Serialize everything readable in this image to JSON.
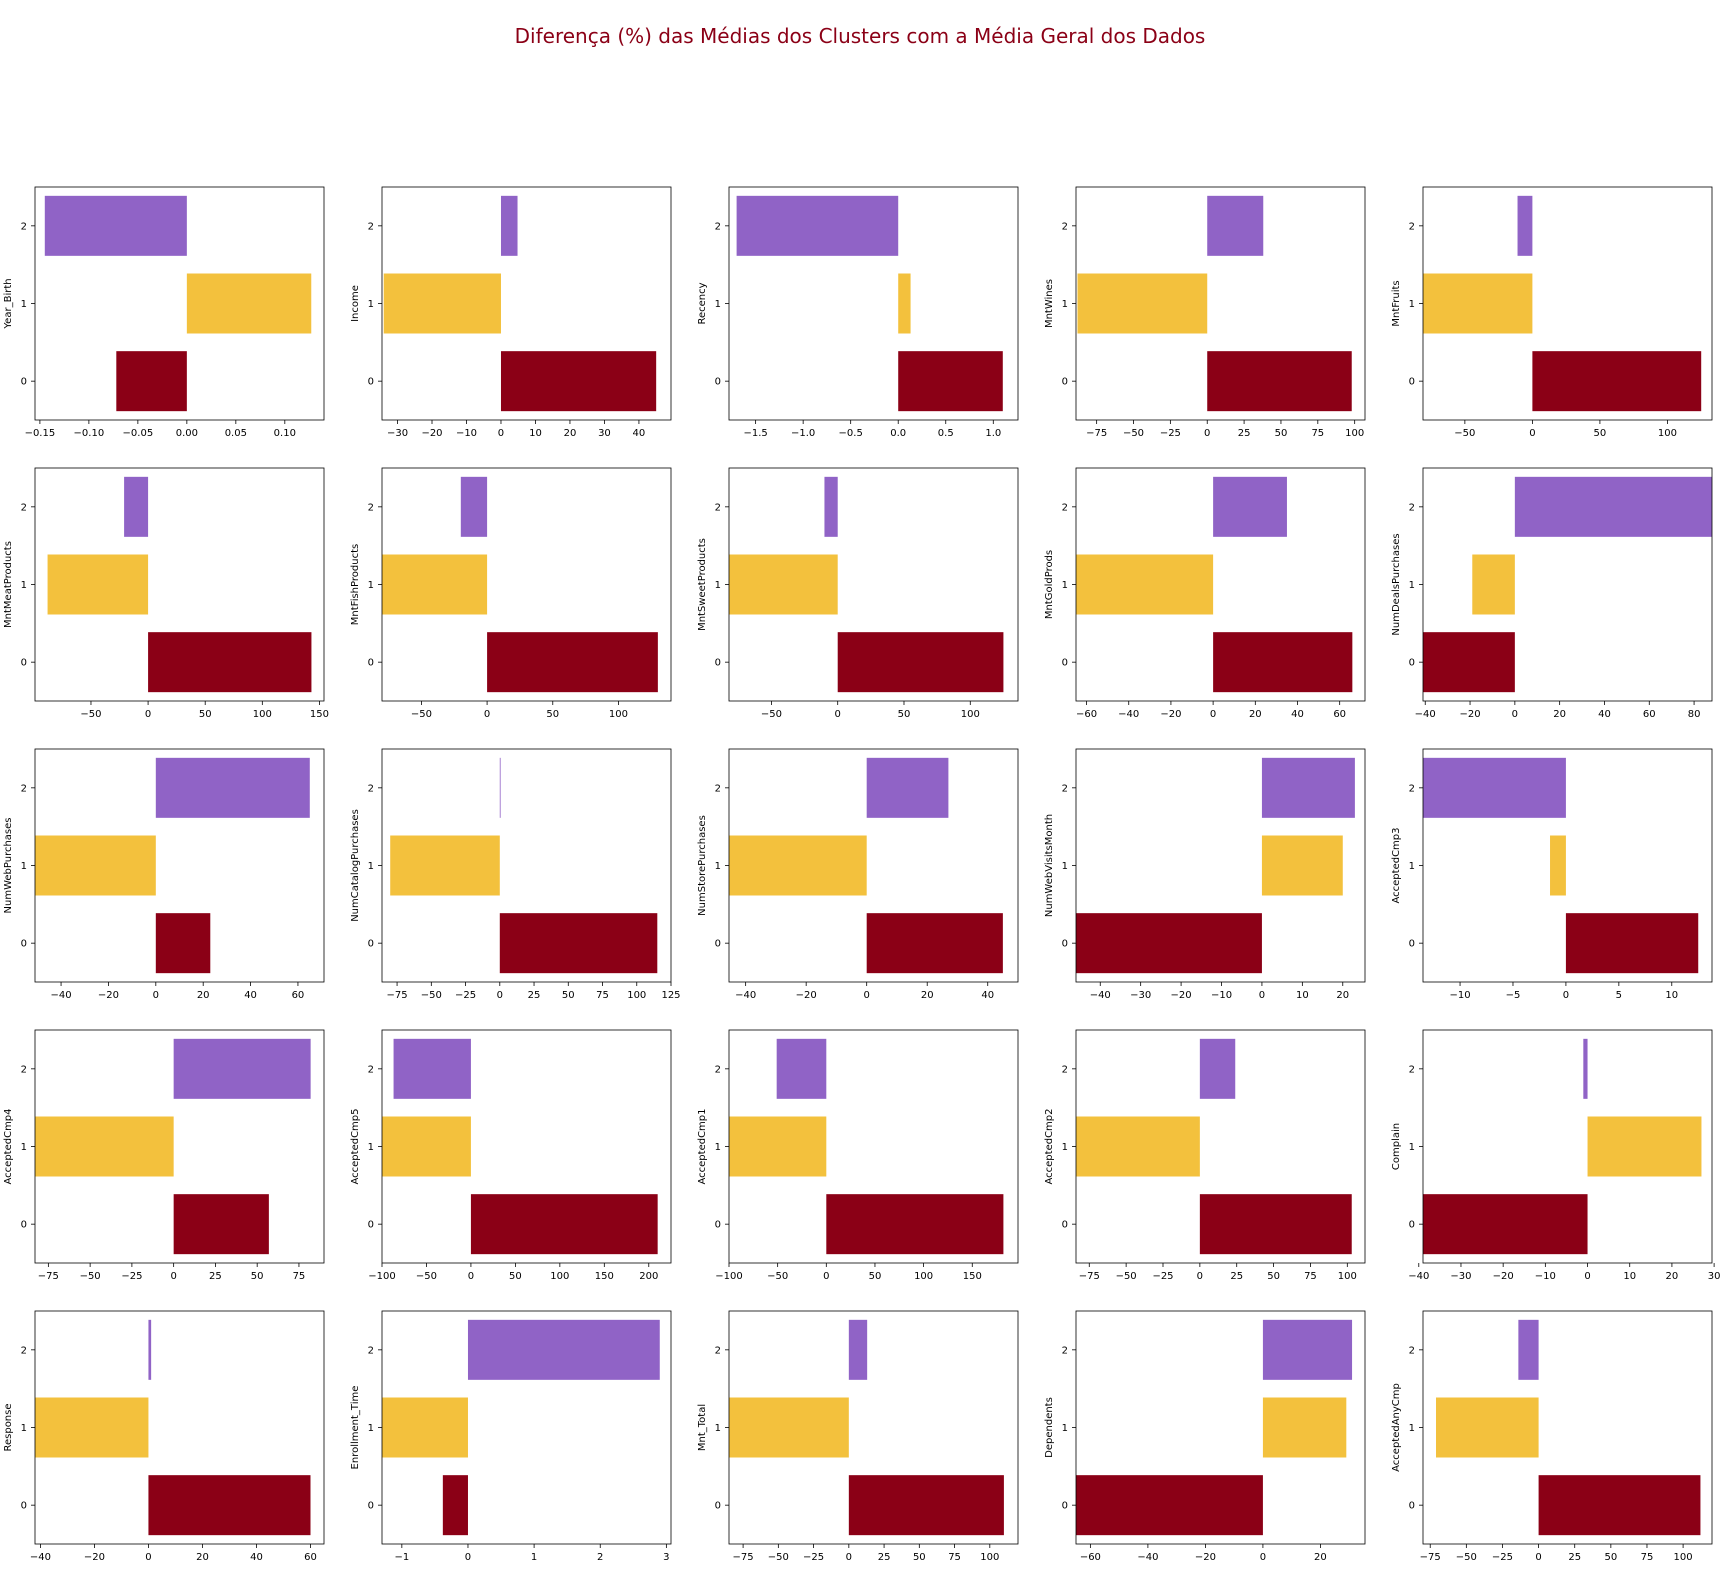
{
  "title": "Diferença (%) das Médias dos Clusters com a Média Geral dos Dados",
  "colors": {
    "cluster_0": "#8b0016",
    "cluster_1": "#f3c13d",
    "cluster_2": "#9063c6",
    "title": "#8b0016"
  },
  "chart_data": [
    {
      "type": "bar",
      "orientation": "horizontal",
      "ylabel": "Year_Birth",
      "categories": [
        "0",
        "1",
        "2"
      ],
      "values": [
        -0.072,
        0.127,
        -0.145
      ],
      "xlim": [
        -0.155,
        0.14
      ],
      "xticks": [
        -0.15,
        -0.1,
        -0.05,
        0.0,
        0.05,
        0.1
      ],
      "xtick_labels": [
        "−0.15",
        "−0.10",
        "−0.05",
        "0.00",
        "0.05",
        "0.10"
      ]
    },
    {
      "type": "bar",
      "orientation": "horizontal",
      "ylabel": "Income",
      "categories": [
        "0",
        "1",
        "2"
      ],
      "values": [
        45.0,
        -34.0,
        4.8
      ],
      "xlim": [
        -34.5,
        49.3
      ],
      "xticks": [
        -30,
        -20,
        -10,
        0,
        10,
        20,
        30,
        40
      ],
      "xtick_labels": [
        "−30",
        "−20",
        "−10",
        "0",
        "10",
        "20",
        "30",
        "40"
      ]
    },
    {
      "type": "bar",
      "orientation": "horizontal",
      "ylabel": "Recency",
      "categories": [
        "0",
        "1",
        "2"
      ],
      "values": [
        1.1,
        0.13,
        -1.7
      ],
      "xlim": [
        -1.78,
        1.26
      ],
      "xticks": [
        -1.5,
        -1.0,
        -0.5,
        0.0,
        0.5,
        1.0
      ],
      "xtick_labels": [
        "−1.5",
        "−1.0",
        "−0.5",
        "0.0",
        "0.5",
        "1.0"
      ]
    },
    {
      "type": "bar",
      "orientation": "horizontal",
      "ylabel": "MntWines",
      "categories": [
        "0",
        "1",
        "2"
      ],
      "values": [
        98,
        -88,
        38
      ],
      "xlim": [
        -89,
        107
      ],
      "xticks": [
        -75,
        -50,
        -25,
        0,
        25,
        50,
        75,
        100
      ],
      "xtick_labels": [
        "−75",
        "−50",
        "−25",
        "0",
        "25",
        "50",
        "75",
        "100"
      ]
    },
    {
      "type": "bar",
      "orientation": "horizontal",
      "ylabel": "MntFruits",
      "categories": [
        "0",
        "1",
        "2"
      ],
      "values": [
        125,
        -81,
        -11
      ],
      "xlim": [
        -81,
        133
      ],
      "xticks": [
        -50,
        0,
        50,
        100
      ],
      "xtick_labels": [
        "−50",
        "0",
        "50",
        "100"
      ]
    },
    {
      "type": "bar",
      "orientation": "horizontal",
      "ylabel": "MntMeatProducts",
      "categories": [
        "0",
        "1",
        "2"
      ],
      "values": [
        143,
        -88,
        -21
      ],
      "xlim": [
        -99,
        154
      ],
      "xticks": [
        -50,
        0,
        50,
        100,
        150
      ],
      "xtick_labels": [
        "−50",
        "0",
        "50",
        "100",
        "150"
      ]
    },
    {
      "type": "bar",
      "orientation": "horizontal",
      "ylabel": "MntFishProducts",
      "categories": [
        "0",
        "1",
        "2"
      ],
      "values": [
        130,
        -80,
        -20
      ],
      "xlim": [
        -80,
        140
      ],
      "xticks": [
        -50,
        0,
        50,
        100
      ],
      "xtick_labels": [
        "−50",
        "0",
        "50",
        "100"
      ]
    },
    {
      "type": "bar",
      "orientation": "horizontal",
      "ylabel": "MntSweetProducts",
      "categories": [
        "0",
        "1",
        "2"
      ],
      "values": [
        125,
        -82,
        -10
      ],
      "xlim": [
        -82,
        136
      ],
      "xticks": [
        -50,
        0,
        50,
        100
      ],
      "xtick_labels": [
        "−50",
        "0",
        "50",
        "100"
      ]
    },
    {
      "type": "bar",
      "orientation": "horizontal",
      "ylabel": "MntGoldProds",
      "categories": [
        "0",
        "1",
        "2"
      ],
      "values": [
        66,
        -65,
        35
      ],
      "xlim": [
        -65,
        72
      ],
      "xticks": [
        -60,
        -40,
        -20,
        0,
        20,
        40,
        60
      ],
      "xtick_labels": [
        "−60",
        "−40",
        "−20",
        "0",
        "20",
        "40",
        "60"
      ]
    },
    {
      "type": "bar",
      "orientation": "horizontal",
      "ylabel": "NumDealsPurchases",
      "categories": [
        "0",
        "1",
        "2"
      ],
      "values": [
        -41,
        -19,
        88
      ],
      "xlim": [
        -41,
        88
      ],
      "xticks": [
        -40,
        -20,
        0,
        20,
        40,
        60,
        80
      ],
      "xtick_labels": [
        "−40",
        "−20",
        "0",
        "20",
        "40",
        "60",
        "80"
      ]
    },
    {
      "type": "bar",
      "orientation": "horizontal",
      "ylabel": "NumWebPurchases",
      "categories": [
        "0",
        "1",
        "2"
      ],
      "values": [
        23,
        -51,
        65
      ],
      "xlim": [
        -51,
        71
      ],
      "xticks": [
        -40,
        -20,
        0,
        20,
        40,
        60
      ],
      "xtick_labels": [
        "−40",
        "−20",
        "0",
        "20",
        "40",
        "60"
      ]
    },
    {
      "type": "bar",
      "orientation": "horizontal",
      "ylabel": "NumCatalogPurchases",
      "categories": [
        "0",
        "1",
        "2"
      ],
      "values": [
        115,
        -80,
        0
      ],
      "xlim": [
        -86,
        125
      ],
      "xticks": [
        -75,
        -50,
        -25,
        0,
        25,
        50,
        75,
        100,
        125
      ],
      "xtick_labels": [
        "−75",
        "−50",
        "−25",
        "0",
        "25",
        "50",
        "75",
        "100",
        "125"
      ]
    },
    {
      "type": "bar",
      "orientation": "horizontal",
      "ylabel": "NumStorePurchases",
      "categories": [
        "0",
        "1",
        "2"
      ],
      "values": [
        45,
        -45.5,
        27
      ],
      "xlim": [
        -45.5,
        50
      ],
      "xticks": [
        -40,
        -20,
        0,
        20,
        40
      ],
      "xtick_labels": [
        "−40",
        "−20",
        "0",
        "20",
        "40"
      ]
    },
    {
      "type": "bar",
      "orientation": "horizontal",
      "ylabel": "NumWebVisitsMonth",
      "categories": [
        "0",
        "1",
        "2"
      ],
      "values": [
        -46,
        20,
        23
      ],
      "xlim": [
        -46,
        25.5
      ],
      "xticks": [
        -40,
        -30,
        -20,
        -10,
        0,
        10,
        20
      ],
      "xtick_labels": [
        "−40",
        "−30",
        "−20",
        "−10",
        "0",
        "10",
        "20"
      ]
    },
    {
      "type": "bar",
      "orientation": "horizontal",
      "ylabel": "AcceptedCmp3",
      "categories": [
        "0",
        "1",
        "2"
      ],
      "values": [
        12.5,
        -1.5,
        -13.5
      ],
      "xlim": [
        -13.5,
        13.8
      ],
      "xticks": [
        -10,
        -5,
        0,
        5,
        10
      ],
      "xtick_labels": [
        "−10",
        "−5",
        "0",
        "5",
        "10"
      ]
    },
    {
      "type": "bar",
      "orientation": "horizontal",
      "ylabel": "AcceptedCmp4",
      "categories": [
        "0",
        "1",
        "2"
      ],
      "values": [
        57,
        -83,
        82
      ],
      "xlim": [
        -83,
        90
      ],
      "xticks": [
        -75,
        -50,
        -25,
        0,
        25,
        50,
        75
      ],
      "xtick_labels": [
        "−75",
        "−50",
        "−25",
        "0",
        "25",
        "50",
        "75"
      ]
    },
    {
      "type": "bar",
      "orientation": "horizontal",
      "ylabel": "AcceptedCmp5",
      "categories": [
        "0",
        "1",
        "2"
      ],
      "values": [
        210,
        -100,
        -87
      ],
      "xlim": [
        -100,
        225
      ],
      "xticks": [
        -100,
        -50,
        0,
        50,
        100,
        150,
        200
      ],
      "xtick_labels": [
        "−100",
        "−50",
        "0",
        "50",
        "100",
        "150",
        "200"
      ]
    },
    {
      "type": "bar",
      "orientation": "horizontal",
      "ylabel": "AcceptedCmp1",
      "categories": [
        "0",
        "1",
        "2"
      ],
      "values": [
        182,
        -100,
        -51
      ],
      "xlim": [
        -100,
        197
      ],
      "xticks": [
        -100,
        -50,
        0,
        50,
        100,
        150
      ],
      "xtick_labels": [
        "−100",
        "−50",
        "0",
        "50",
        "100",
        "150"
      ]
    },
    {
      "type": "bar",
      "orientation": "horizontal",
      "ylabel": "AcceptedCmp2",
      "categories": [
        "0",
        "1",
        "2"
      ],
      "values": [
        103,
        -84,
        24
      ],
      "xlim": [
        -84,
        112
      ],
      "xticks": [
        -75,
        -50,
        -25,
        0,
        25,
        50,
        75,
        100
      ],
      "xtick_labels": [
        "−75",
        "−50",
        "−25",
        "0",
        "25",
        "50",
        "75",
        "100"
      ]
    },
    {
      "type": "bar",
      "orientation": "horizontal",
      "ylabel": "Complain",
      "categories": [
        "0",
        "1",
        "2"
      ],
      "values": [
        -39,
        27,
        -1
      ],
      "xlim": [
        -39,
        29.5
      ],
      "xticks": [
        -40,
        -30,
        -20,
        -10,
        0,
        10,
        20,
        30
      ],
      "xtick_labels": [
        "−40",
        "−30",
        "−20",
        "−10",
        "0",
        "10",
        "20",
        "30"
      ]
    },
    {
      "type": "bar",
      "orientation": "horizontal",
      "ylabel": "Response",
      "categories": [
        "0",
        "1",
        "2"
      ],
      "values": [
        60,
        -42,
        1
      ],
      "xlim": [
        -42,
        65
      ],
      "xticks": [
        -40,
        -20,
        0,
        20,
        40,
        60
      ],
      "xtick_labels": [
        "−40",
        "−20",
        "0",
        "20",
        "40",
        "60"
      ]
    },
    {
      "type": "bar",
      "orientation": "horizontal",
      "ylabel": "Enrollment_Time",
      "categories": [
        "0",
        "1",
        "2"
      ],
      "values": [
        -0.38,
        -1.3,
        2.9
      ],
      "xlim": [
        -1.3,
        3.07
      ],
      "xticks": [
        -1,
        0,
        1,
        2,
        3
      ],
      "xtick_labels": [
        "−1",
        "0",
        "1",
        "2",
        "3"
      ]
    },
    {
      "type": "bar",
      "orientation": "horizontal",
      "ylabel": "Mnt_Total",
      "categories": [
        "0",
        "1",
        "2"
      ],
      "values": [
        110,
        -85,
        13
      ],
      "xlim": [
        -85,
        120
      ],
      "xticks": [
        -75,
        -50,
        -25,
        0,
        25,
        50,
        75,
        100
      ],
      "xtick_labels": [
        "−75",
        "−50",
        "−25",
        "0",
        "25",
        "50",
        "75",
        "100"
      ]
    },
    {
      "type": "bar",
      "orientation": "horizontal",
      "ylabel": "Dependents",
      "categories": [
        "0",
        "1",
        "2"
      ],
      "values": [
        -65,
        29,
        31
      ],
      "xlim": [
        -65,
        35.5
      ],
      "xticks": [
        -60,
        -40,
        -20,
        0,
        20
      ],
      "xtick_labels": [
        "−60",
        "−40",
        "−20",
        "0",
        "20"
      ]
    },
    {
      "type": "bar",
      "orientation": "horizontal",
      "ylabel": "AcceptedAnyCmp",
      "categories": [
        "0",
        "1",
        "2"
      ],
      "values": [
        112,
        -71,
        -14
      ],
      "xlim": [
        -80,
        120
      ],
      "xticks": [
        -75,
        -50,
        -25,
        0,
        25,
        50,
        75,
        100
      ],
      "xtick_labels": [
        "−75",
        "−50",
        "−25",
        "0",
        "25",
        "50",
        "75",
        "100"
      ]
    }
  ]
}
